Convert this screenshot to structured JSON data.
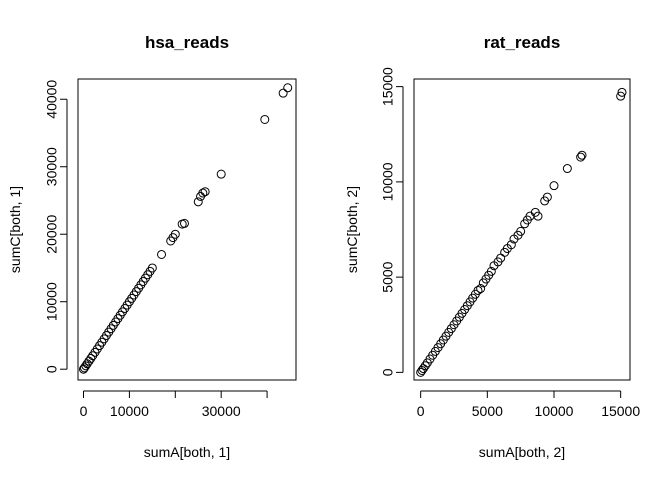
{
  "chart_data": [
    {
      "type": "scatter",
      "title": "hsa_reads",
      "xlabel": "sumA[both, 1]",
      "ylabel": "sumC[both, 1]",
      "xlim": [
        -1200,
        46300
      ],
      "ylim": [
        -1600,
        43000
      ],
      "xticks": [
        0,
        10000,
        30000
      ],
      "xtick_labels": [
        "0",
        "10000",
        "30000"
      ],
      "xticks_unlabeled": [
        20000,
        40000
      ],
      "yticks": [
        0,
        10000,
        20000,
        30000,
        40000
      ],
      "ytick_labels": [
        "0",
        "10000",
        "20000",
        "30000",
        "40000"
      ],
      "x": [
        0,
        200,
        500,
        800,
        1200,
        1600,
        2000,
        2500,
        3000,
        3500,
        4000,
        4500,
        5000,
        5500,
        6000,
        6500,
        7000,
        7500,
        8000,
        8500,
        9000,
        9500,
        10000,
        10500,
        11000,
        11500,
        12000,
        12500,
        13000,
        13500,
        14000,
        14500,
        15000,
        17000,
        19000,
        19500,
        20000,
        21500,
        22000,
        25000,
        25500,
        26000,
        26500,
        30000,
        39500,
        43500,
        44500
      ],
      "y": [
        0,
        200,
        500,
        800,
        1200,
        1600,
        2000,
        2500,
        3000,
        3500,
        4000,
        4500,
        5000,
        5500,
        6000,
        6500,
        7000,
        7500,
        8000,
        8500,
        9000,
        9500,
        10000,
        10500,
        11000,
        11500,
        12000,
        12500,
        13000,
        13500,
        14000,
        14500,
        15000,
        17000,
        19000,
        19500,
        20000,
        21500,
        21600,
        24800,
        25600,
        26100,
        26300,
        28900,
        37000,
        40900,
        41700
      ],
      "grid": false
    },
    {
      "type": "scatter",
      "title": "rat_reads",
      "xlabel": "sumA[both, 2]",
      "ylabel": "sumC[both, 2]",
      "xlim": [
        -500,
        15700
      ],
      "ylim": [
        -400,
        15400
      ],
      "xticks": [
        0,
        5000,
        10000,
        15000
      ],
      "xtick_labels": [
        "0",
        "5000",
        "10000",
        "15000"
      ],
      "yticks": [
        0,
        5000,
        10000,
        15000
      ],
      "ytick_labels": [
        "0",
        "5000",
        "10000",
        "15000"
      ],
      "x": [
        0,
        100,
        200,
        350,
        500,
        700,
        900,
        1100,
        1300,
        1500,
        1700,
        1900,
        2100,
        2300,
        2500,
        2700,
        2900,
        3100,
        3300,
        3500,
        3700,
        3900,
        4100,
        4300,
        4500,
        4700,
        4900,
        5100,
        5300,
        5500,
        5800,
        6000,
        6300,
        6500,
        6800,
        7000,
        7300,
        7500,
        7800,
        8000,
        8200,
        8600,
        8800,
        9300,
        9500,
        10000,
        11000,
        12000,
        12100,
        15000,
        15100
      ],
      "y": [
        0,
        100,
        200,
        350,
        500,
        700,
        900,
        1100,
        1300,
        1500,
        1700,
        1900,
        2100,
        2300,
        2500,
        2700,
        2900,
        3100,
        3300,
        3500,
        3700,
        3900,
        4100,
        4300,
        4400,
        4700,
        4900,
        5100,
        5300,
        5600,
        5800,
        6000,
        6300,
        6500,
        6700,
        7000,
        7200,
        7400,
        7800,
        8000,
        8200,
        8400,
        8200,
        9000,
        9200,
        9800,
        10700,
        11300,
        11400,
        14500,
        14700
      ],
      "grid": false
    }
  ]
}
